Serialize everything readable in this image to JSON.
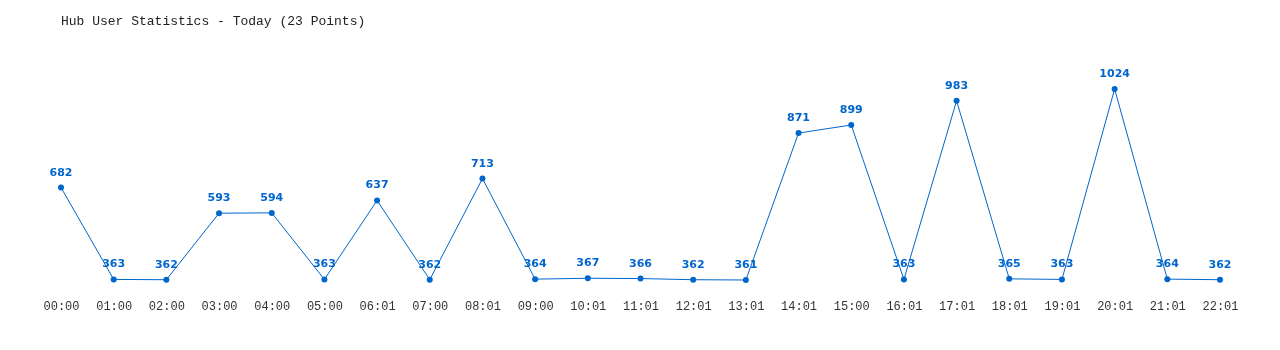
{
  "chart_data": {
    "type": "line",
    "title": "Hub User Statistics - Today (23 Points)",
    "categories": [
      "00:00",
      "01:00",
      "02:00",
      "03:00",
      "04:00",
      "05:00",
      "06:01",
      "07:00",
      "08:01",
      "09:00",
      "10:01",
      "11:01",
      "12:01",
      "13:01",
      "14:01",
      "15:00",
      "16:01",
      "17:01",
      "18:01",
      "19:01",
      "20:01",
      "21:01",
      "22:01"
    ],
    "series": [
      {
        "color": "#0066cc",
        "values": [
          682,
          363,
          362,
          593,
          594,
          363,
          637,
          362,
          713,
          364,
          367,
          366,
          362,
          361,
          871,
          899,
          363,
          983,
          365,
          363,
          1024,
          364,
          362
        ]
      }
    ],
    "data_labels": true,
    "marker": "circle",
    "grid": false,
    "legend": false,
    "tick_labels": "x"
  }
}
